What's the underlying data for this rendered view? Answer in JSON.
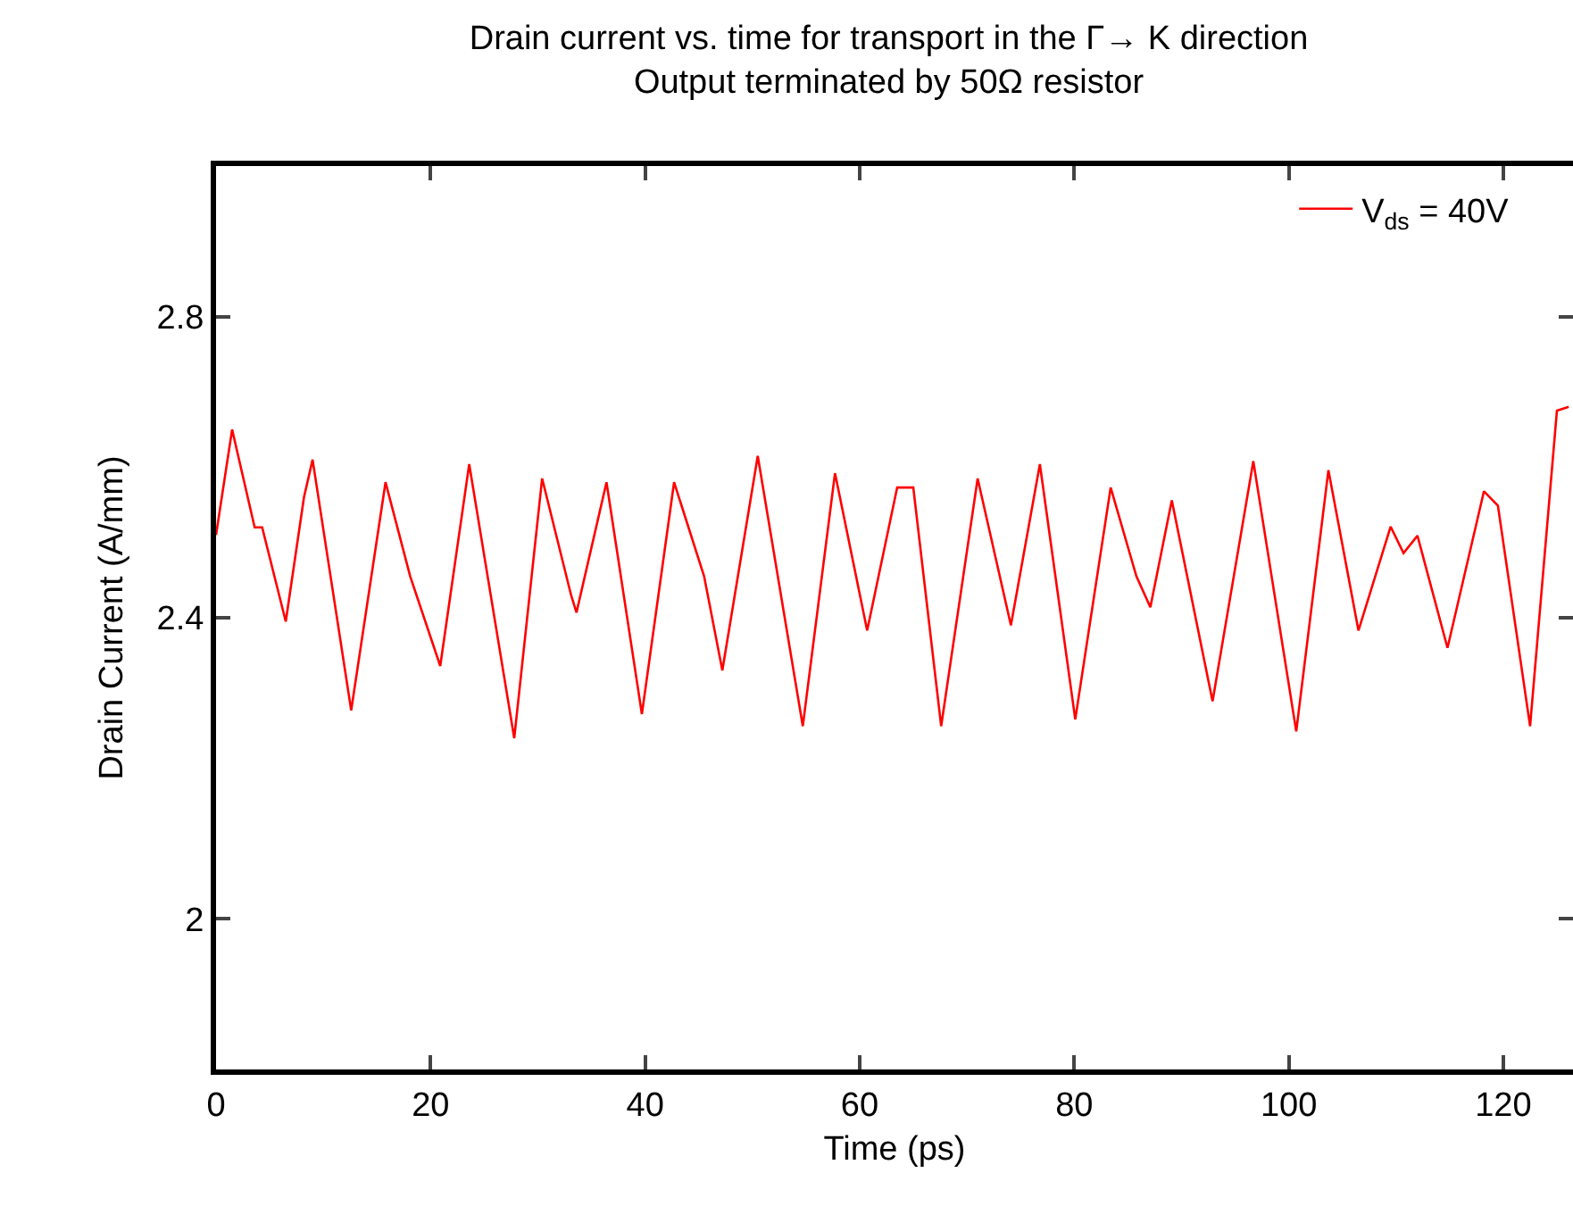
{
  "chart_data": {
    "type": "line",
    "title": "Drain current vs. time for transport in the Γ→ K direction",
    "subtitle": "Output terminated by 50Ω resistor",
    "xlabel": "Time (ps)",
    "ylabel": "Drain Current (A/mm)",
    "xlim": [
      0,
      126.5
    ],
    "ylim": [
      1.8,
      3.0
    ],
    "xticks": [
      0,
      20,
      40,
      60,
      80,
      100,
      120
    ],
    "yticks": [
      {
        "value": 2.0,
        "label": "2"
      },
      2.4,
      2.8
    ],
    "legend": "top right",
    "marker": "none",
    "line_style": "solid",
    "series": [
      {
        "name": "V$_{ds}$ = 40V",
        "color": "#ff0000",
        "x": [
          0,
          1.5,
          3.6,
          4.3,
          6.5,
          8.2,
          9,
          12.6,
          15.8,
          18.1,
          20.9,
          23.6,
          27.8,
          30.4,
          33.1,
          33.6,
          36.4,
          39.7,
          42.7,
          45.5,
          47.2,
          50.5,
          54.7,
          57.7,
          60.7,
          63.5,
          65,
          67.6,
          71,
          74.1,
          76.8,
          80.1,
          83.4,
          85.8,
          87.1,
          89.1,
          92.9,
          96.7,
          100.7,
          103.7,
          106.5,
          109.5,
          110.7,
          112,
          114.8,
          118.2,
          119.5,
          122.5,
          125,
          126.1
        ],
        "values": [
          2.51,
          2.65,
          2.52,
          2.52,
          2.395,
          2.56,
          2.61,
          2.277,
          2.58,
          2.455,
          2.336,
          2.604,
          2.24,
          2.585,
          2.43,
          2.407,
          2.58,
          2.272,
          2.58,
          2.455,
          2.33,
          2.615,
          2.256,
          2.592,
          2.383,
          2.573,
          2.573,
          2.256,
          2.585,
          2.39,
          2.604,
          2.265,
          2.573,
          2.455,
          2.414,
          2.556,
          2.289,
          2.608,
          2.249,
          2.596,
          2.383,
          2.521,
          2.486,
          2.509,
          2.36,
          2.568,
          2.549,
          2.256,
          2.675,
          2.68
        ]
      }
    ]
  }
}
